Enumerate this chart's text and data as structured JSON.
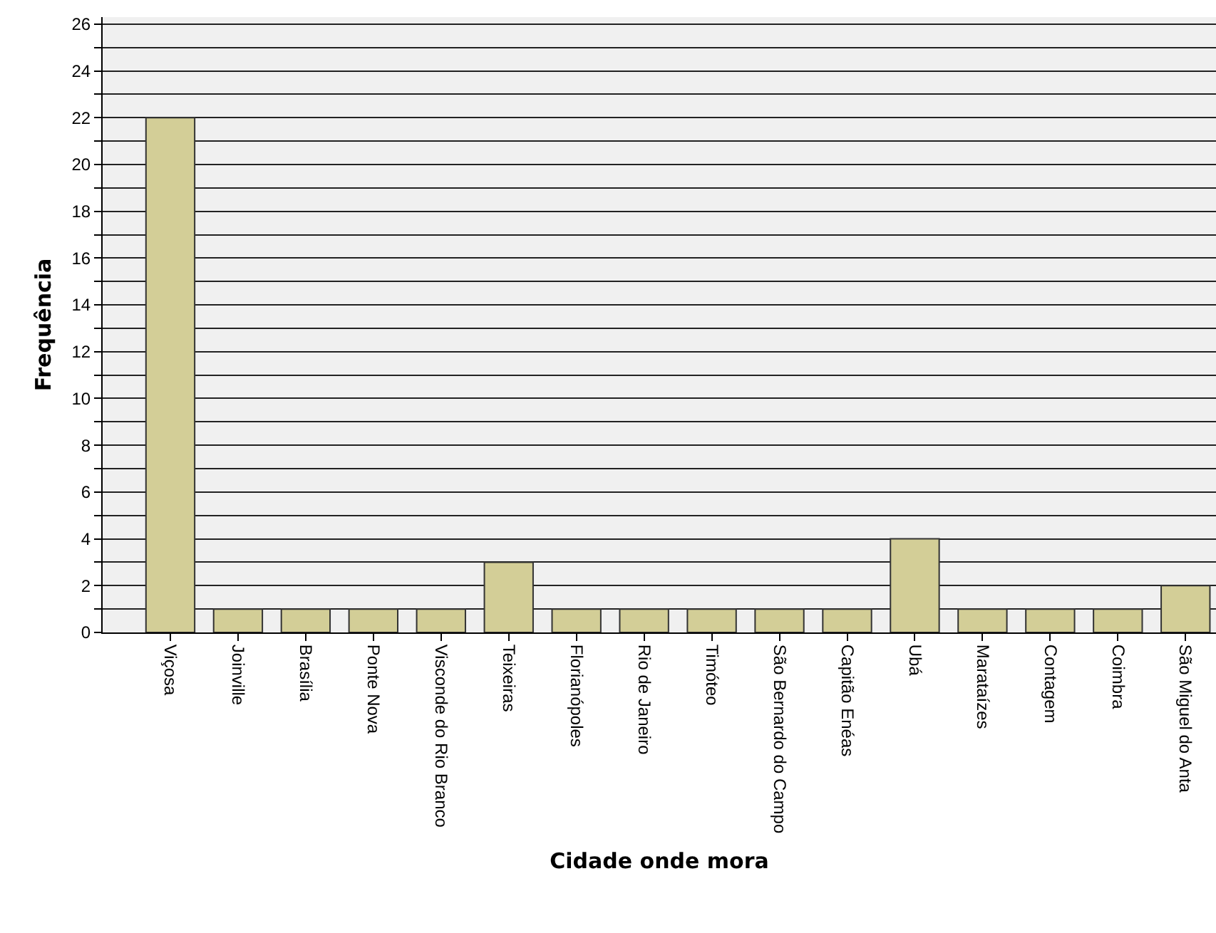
{
  "chart_data": {
    "type": "bar",
    "xlabel": "Cidade onde mora",
    "ylabel": "Frequência",
    "categories": [
      "Viçosa",
      "Joinville",
      "Brasília",
      "Ponte Nova",
      "Visconde do Rio Branco",
      "Teixeiras",
      "Florianópoles",
      "Rio de Janeiro",
      "Timóteo",
      "São Bernardo do Campo",
      "Capitão Enéas",
      "Ubá",
      "Marataízes",
      "Contagem",
      "Coimbra",
      "São Miguel do Anta"
    ],
    "values": [
      22,
      1,
      1,
      1,
      1,
      3,
      1,
      1,
      1,
      1,
      1,
      4,
      1,
      1,
      1,
      2
    ],
    "color": "#d3ce97",
    "ylim": [
      0,
      26.3
    ],
    "yticks": [
      0,
      {
        "value": 1,
        "label": null
      },
      2,
      {
        "value": 3,
        "label": null
      },
      4,
      {
        "value": 5,
        "label": null
      },
      6,
      {
        "value": 7,
        "label": null
      },
      8,
      {
        "value": 9,
        "label": null
      },
      10,
      {
        "value": 11,
        "label": null
      },
      12,
      {
        "value": 13,
        "label": null
      },
      14,
      {
        "value": 15,
        "label": null
      },
      16,
      {
        "value": 17,
        "label": null
      },
      18,
      {
        "value": 19,
        "label": null
      },
      20,
      {
        "value": 21,
        "label": null
      },
      22,
      {
        "value": 23,
        "label": null
      },
      24,
      {
        "value": 25,
        "label": null
      },
      26
    ],
    "grid": "y"
  }
}
